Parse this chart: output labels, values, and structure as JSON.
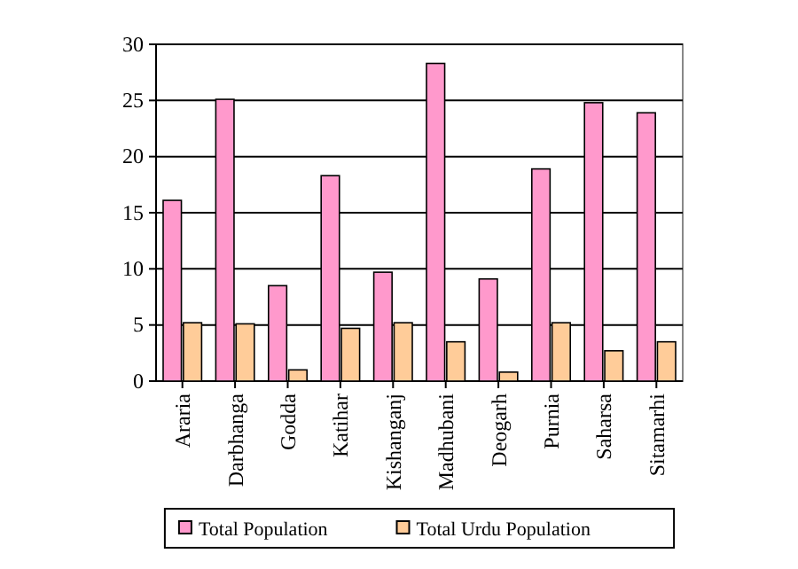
{
  "chart_data": {
    "type": "bar",
    "categories": [
      "Araria",
      "Darbhanga",
      "Godda",
      "Katihar",
      "Kishanganj",
      "Madhubani",
      "Deogarh",
      "Purnia",
      "Saharsa",
      "Sitamarhi"
    ],
    "series": [
      {
        "name": "Total Population",
        "color": "#ff99cc",
        "values": [
          16.1,
          25.1,
          8.5,
          18.3,
          9.7,
          28.3,
          9.1,
          18.9,
          24.8,
          23.9
        ]
      },
      {
        "name": "Total Urdu Population",
        "color": "#ffcc99",
        "values": [
          5.2,
          5.1,
          1.0,
          4.7,
          5.2,
          3.5,
          0.8,
          5.2,
          2.7,
          3.5
        ]
      }
    ],
    "ylim": [
      0,
      30
    ],
    "yticks": [
      0,
      5,
      10,
      15,
      20,
      25,
      30
    ],
    "grid": "y",
    "legend": "bottom"
  }
}
